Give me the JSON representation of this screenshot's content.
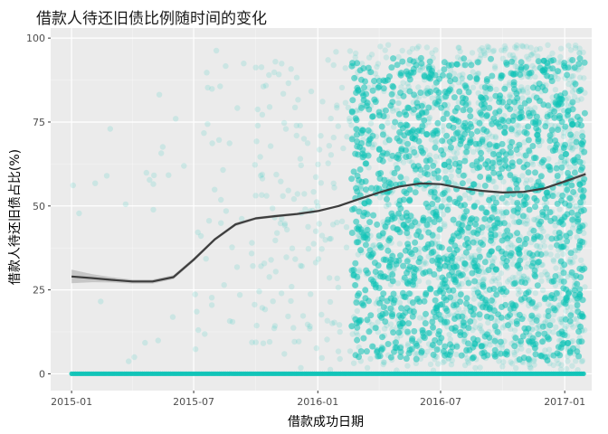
{
  "chart_data": {
    "type": "scatter",
    "title": "借款人待还旧债比例随时间的变化",
    "xlabel": "借款成功日期",
    "ylabel": "借款人待还旧债占比(%)",
    "x_ticks": [
      "2015-01",
      "2015-07",
      "2016-01",
      "2016-07",
      "2017-01"
    ],
    "y_ticks": [
      "0",
      "25",
      "50",
      "75",
      "100"
    ],
    "xlim": [
      "2014-12-01",
      "2017-02-10"
    ],
    "ylim": [
      -5,
      103
    ],
    "grid": true,
    "point_color": "#0FC3B7",
    "smooth_color": "#3D3D3D",
    "ribbon_color": "#999999",
    "smooth_line": {
      "x": [
        "2015-01-01",
        "2015-02-01",
        "2015-03-01",
        "2015-04-01",
        "2015-05-01",
        "2015-06-01",
        "2015-07-01",
        "2015-08-01",
        "2015-09-01",
        "2015-10-01",
        "2015-11-01",
        "2015-12-01",
        "2016-01-01",
        "2016-02-01",
        "2016-03-01",
        "2016-04-01",
        "2016-05-01",
        "2016-06-01",
        "2016-07-01",
        "2016-08-01",
        "2016-09-01",
        "2016-10-01",
        "2016-11-01",
        "2016-12-01",
        "2017-01-01",
        "2017-02-01"
      ],
      "y": [
        29.0,
        28.5,
        28.0,
        27.5,
        27.5,
        28.8,
        34.0,
        40.0,
        44.5,
        46.3,
        47.0,
        47.6,
        48.5,
        50.0,
        52.0,
        54.0,
        55.8,
        56.7,
        56.5,
        55.3,
        54.5,
        54.0,
        54.2,
        55.2,
        57.3,
        59.5
      ]
    },
    "ribbon_half_width": [
      2.0,
      1.2,
      0.8,
      0.6,
      0.6,
      0.6,
      0.6,
      0.5,
      0.5,
      0.4,
      0.4,
      0.4,
      0.3,
      0.3,
      0.3,
      0.3,
      0.3,
      0.3,
      0.3,
      0.3,
      0.3,
      0.3,
      0.3,
      0.3,
      0.4,
      0.6
    ]
  }
}
